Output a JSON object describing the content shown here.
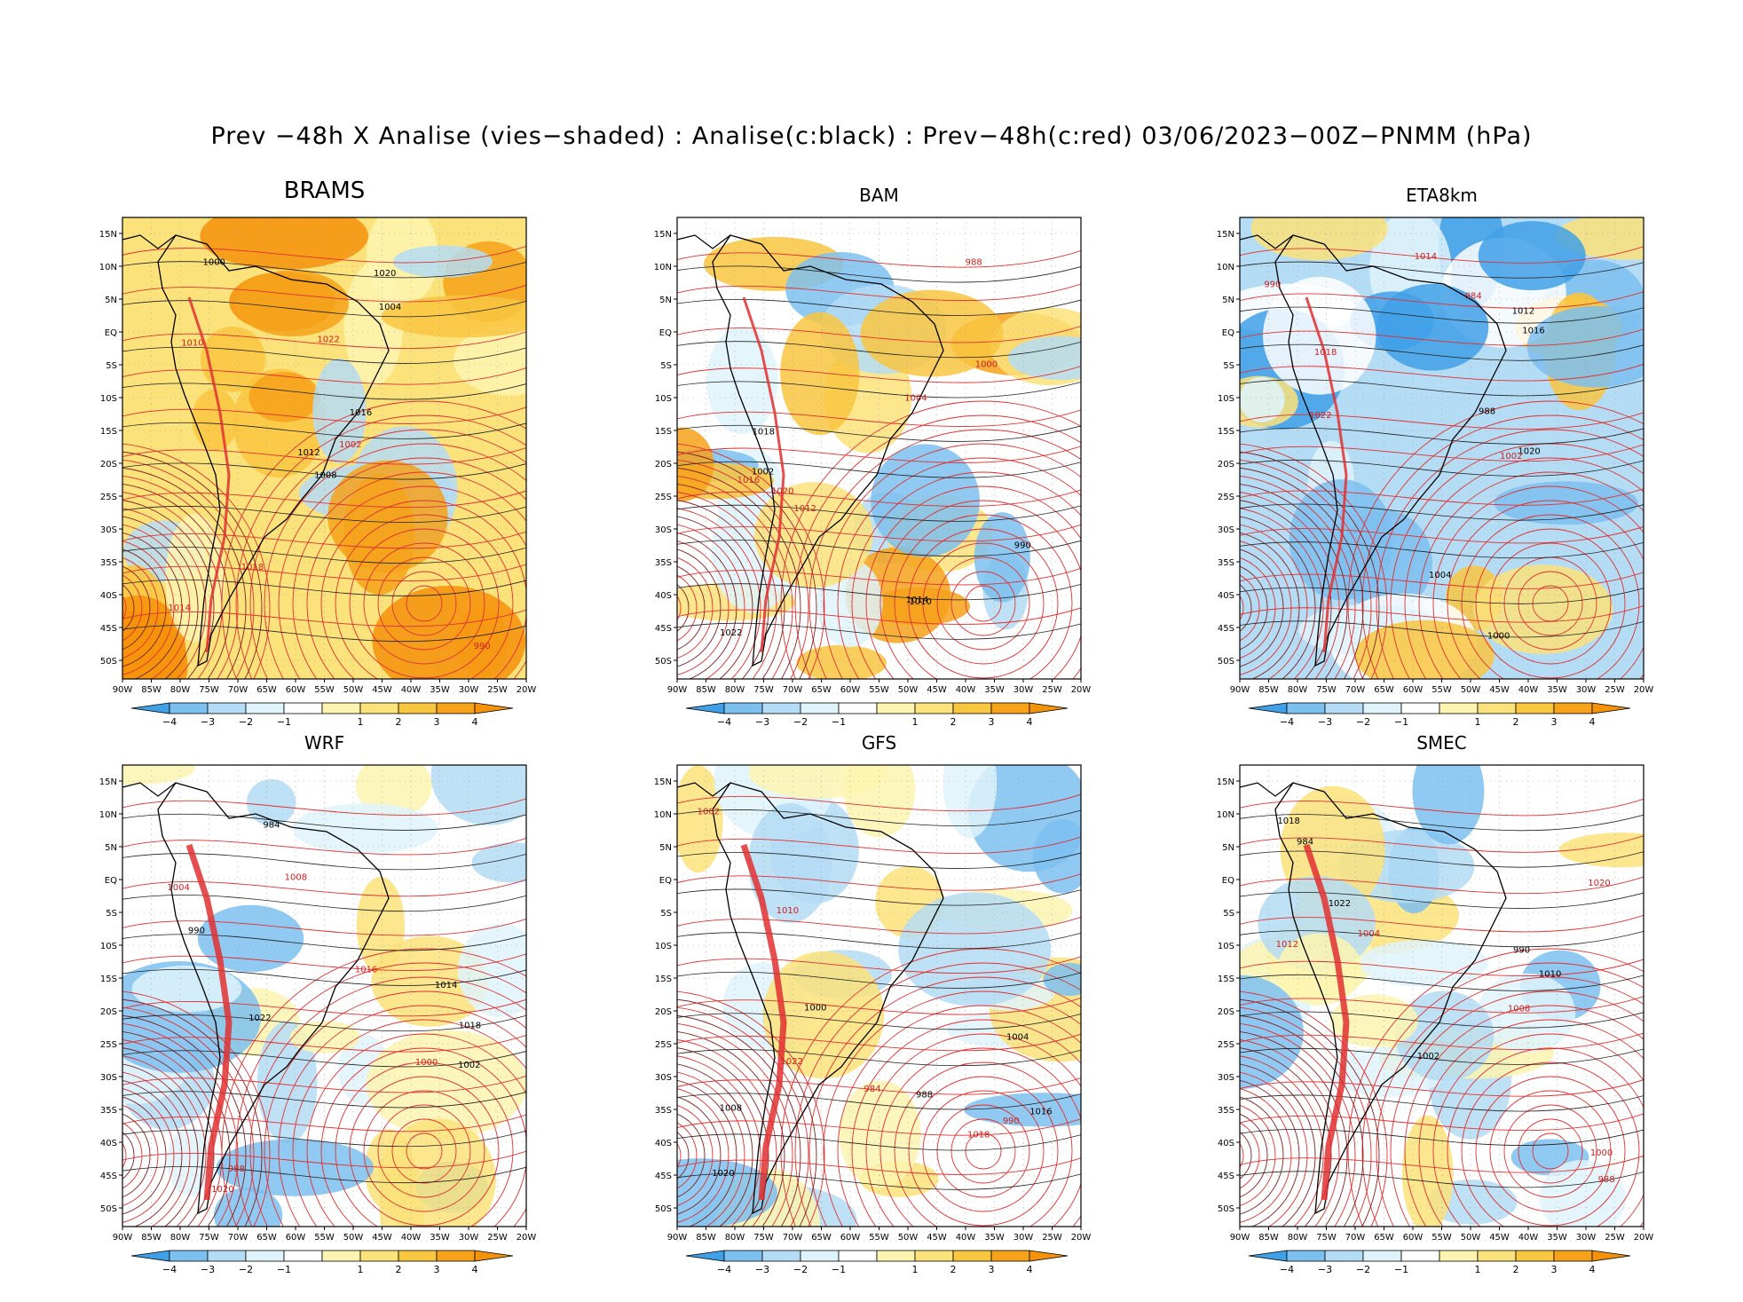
{
  "title": "Prev −48h X Analise (vies−shaded) : Analise(c:black) : Prev−48h(c:red) 03/06/2023−00Z−PNMM (hPa)",
  "lat_labels": [
    "15N",
    "10N",
    "5N",
    "EQ",
    "5S",
    "10S",
    "15S",
    "20S",
    "25S",
    "30S",
    "35S",
    "40S",
    "45S",
    "50S"
  ],
  "lon_labels": [
    "90W",
    "85W",
    "80W",
    "75W",
    "70W",
    "65W",
    "60W",
    "55W",
    "50W",
    "45W",
    "40W",
    "35W",
    "30W",
    "25W",
    "20W"
  ],
  "colorbar": {
    "labels": [
      "−4",
      "−3",
      "−2",
      "−1",
      "1",
      "2",
      "3",
      "4"
    ],
    "colors": [
      "#3fa0e8",
      "#7cc0f0",
      "#b4dcf5",
      "#dff3fb",
      "#ffffff",
      "#fdf4b0",
      "#fbe27a",
      "#f9c640",
      "#f6a21a",
      "#f4920a"
    ]
  },
  "panels": [
    {
      "title": "BRAMS",
      "bias": "warm"
    },
    {
      "title": "BAM",
      "bias": "mixed"
    },
    {
      "title": "ETA8km",
      "bias": "cold"
    },
    {
      "title": "WRF",
      "bias": "neutral"
    },
    {
      "title": "GFS",
      "bias": "neutral"
    },
    {
      "title": "SMEC",
      "bias": "neutral"
    }
  ],
  "contour_labels": [
    "1008",
    "1010",
    "1012",
    "1014",
    "1016",
    "1018",
    "1020",
    "1022",
    "1004",
    "1002",
    "1000",
    "990",
    "988",
    "984"
  ]
}
